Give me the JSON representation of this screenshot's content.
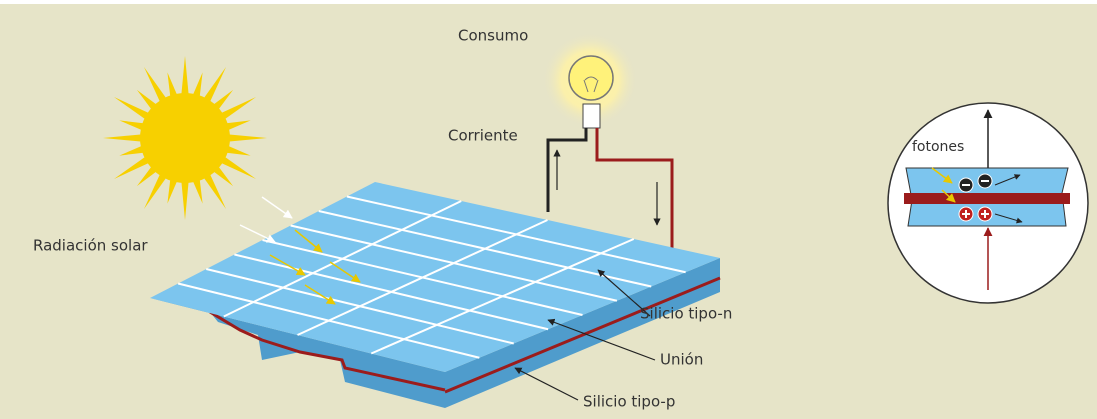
{
  "labels": {
    "consumo": "Consumo",
    "corriente": "Corriente",
    "radiacion": "Radiación solar",
    "silicio_n": "Silicio tipo-n",
    "union": "Unión",
    "silicio_p": "Silicio tipo-p",
    "fotones": "fotones"
  }
}
